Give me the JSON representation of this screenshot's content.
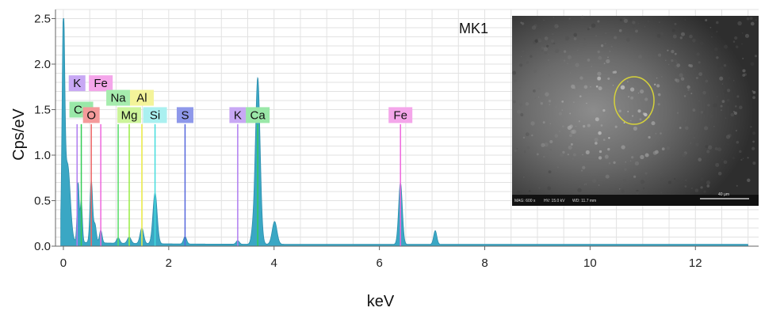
{
  "chart_data": {
    "type": "line",
    "xlabel": "keV",
    "ylabel": "Cps/eV",
    "xlim": [
      -0.15,
      13.2
    ],
    "ylim": [
      0,
      2.6
    ],
    "x_ticks": [
      0,
      2,
      4,
      6,
      8,
      10,
      12
    ],
    "y_ticks": [
      0.0,
      0.5,
      1.0,
      1.5,
      2.0,
      2.5
    ],
    "x_tick_labels": [
      "0",
      "2",
      "4",
      "6",
      "8",
      "10",
      "12"
    ],
    "y_tick_labels": [
      "0.0",
      "0.5",
      "1.0",
      "1.5",
      "2.0",
      "2.5"
    ],
    "grid": true,
    "background_level": 0.02,
    "spectrum_color": "#3aa7c4",
    "peaks": [
      {
        "x": 0.0,
        "y": 2.4,
        "w": 0.025
      },
      {
        "x": 0.08,
        "y": 0.85,
        "w": 0.05
      },
      {
        "x": 0.28,
        "y": 0.65,
        "w": 0.02
      },
      {
        "x": 0.34,
        "y": 0.45,
        "w": 0.02
      },
      {
        "x": 0.53,
        "y": 0.68,
        "w": 0.025
      },
      {
        "x": 0.6,
        "y": 0.2,
        "w": 0.025
      },
      {
        "x": 0.71,
        "y": 0.14,
        "w": 0.025
      },
      {
        "x": 1.04,
        "y": 0.06,
        "w": 0.03
      },
      {
        "x": 1.25,
        "y": 0.07,
        "w": 0.035
      },
      {
        "x": 1.49,
        "y": 0.17,
        "w": 0.035
      },
      {
        "x": 1.74,
        "y": 0.56,
        "w": 0.04
      },
      {
        "x": 2.31,
        "y": 0.08,
        "w": 0.03
      },
      {
        "x": 3.31,
        "y": 0.04,
        "w": 0.03
      },
      {
        "x": 3.59,
        "y": 0.09,
        "w": 0.03
      },
      {
        "x": 3.69,
        "y": 1.83,
        "w": 0.045
      },
      {
        "x": 4.01,
        "y": 0.25,
        "w": 0.045
      },
      {
        "x": 6.4,
        "y": 0.68,
        "w": 0.035
      },
      {
        "x": 7.06,
        "y": 0.15,
        "w": 0.03
      }
    ],
    "markers": [
      {
        "label": "K",
        "x": 0.26,
        "height": 1.34,
        "label_y": 1.79,
        "color": "#b07cf0",
        "bg": "#c8a8f4"
      },
      {
        "label": "Fe",
        "x": 0.71,
        "height": 1.34,
        "label_y": 1.79,
        "color": "#ee66dd",
        "bg": "#f4a6ea"
      },
      {
        "label": "Ca",
        "x": 0.34,
        "height": 1.34,
        "label_y": 1.5,
        "color": "#33cc55",
        "bg": "#9ae8a8"
      },
      {
        "label": "O",
        "x": 0.53,
        "height": 1.34,
        "label_y": 1.44,
        "color": "#ee6666",
        "bg": "#f49a9a"
      },
      {
        "label": "Na",
        "x": 1.04,
        "height": 1.34,
        "label_y": 1.63,
        "color": "#55dd66",
        "bg": "#a6ecae"
      },
      {
        "label": "Mg",
        "x": 1.25,
        "height": 1.34,
        "label_y": 1.44,
        "color": "#99ee44",
        "bg": "#ccf49a"
      },
      {
        "label": "Al",
        "x": 1.49,
        "height": 1.34,
        "label_y": 1.63,
        "color": "#eeee44",
        "bg": "#f4f49a"
      },
      {
        "label": "Si",
        "x": 1.74,
        "height": 1.34,
        "label_y": 1.44,
        "color": "#44dddd",
        "bg": "#aaf0f0"
      },
      {
        "label": "S",
        "x": 2.31,
        "height": 1.34,
        "label_y": 1.44,
        "color": "#5566dd",
        "bg": "#8e98ea"
      },
      {
        "label": "K",
        "x": 3.31,
        "height": 1.34,
        "label_y": 1.44,
        "color": "#b07cf0",
        "bg": "#c8a8f4"
      },
      {
        "label": "Ca",
        "x": 3.69,
        "height": 1.34,
        "label_y": 1.44,
        "color": "#33cc55",
        "bg": "#9ae8a8"
      },
      {
        "label": "Fe",
        "x": 6.4,
        "height": 1.34,
        "label_y": 1.44,
        "color": "#ee66dd",
        "bg": "#f4a6ea"
      }
    ]
  },
  "sample": {
    "label": "MK1"
  },
  "sem_image": {
    "mag": "MAG: 600 x",
    "hv": "HV: 15.0 kV",
    "wd": "WD: 11.7 mm",
    "scale": "40 µm",
    "circle_color": "#d6d23a"
  }
}
